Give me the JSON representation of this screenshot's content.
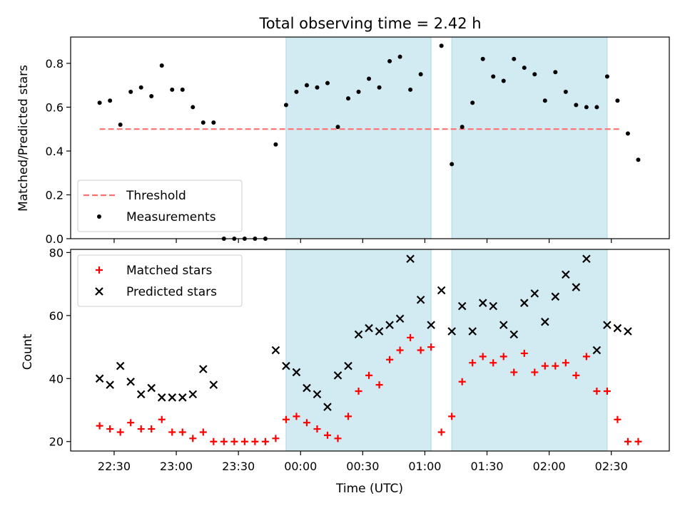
{
  "chart_data": {
    "title": "Total observing time = 2.42 h",
    "x_axis": {
      "label": "Time (UTC)",
      "range": [
        "22:09",
        "02:58"
      ],
      "ticks": [
        "22:30",
        "23:00",
        "23:30",
        "00:00",
        "00:30",
        "01:00",
        "01:30",
        "02:00",
        "02:30"
      ]
    },
    "shaded_intervals": {
      "color": "#add8e6",
      "intervals": [
        [
          "23:53",
          "01:03"
        ],
        [
          "01:13",
          "02:28"
        ]
      ]
    },
    "panels": [
      {
        "type": "scatter",
        "ylabel": "Matched/Predicted stars",
        "ylim": [
          0,
          0.92
        ],
        "yticks": [
          "0.0",
          "0.2",
          "0.4",
          "0.6",
          "0.8"
        ],
        "legend": {
          "placement": "lower-left"
        },
        "threshold": {
          "name": "Threshold",
          "value": 0.5,
          "x_range": [
            "22:23",
            "02:35"
          ],
          "color": "#ff7070"
        },
        "series": [
          {
            "name": "Measurements",
            "color": "#000000",
            "x": [
              "22:23",
              "22:28",
              "22:33",
              "22:38",
              "22:43",
              "22:48",
              "22:53",
              "22:58",
              "23:03",
              "23:08",
              "23:13",
              "23:18",
              "23:23",
              "23:28",
              "23:33",
              "23:38",
              "23:43",
              "23:48",
              "23:53",
              "23:58",
              "00:03",
              "00:08",
              "00:13",
              "00:18",
              "00:23",
              "00:28",
              "00:33",
              "00:38",
              "00:43",
              "00:48",
              "00:53",
              "00:58",
              "01:08",
              "01:13",
              "01:18",
              "01:23",
              "01:28",
              "01:33",
              "01:38",
              "01:43",
              "01:48",
              "01:53",
              "01:58",
              "02:03",
              "02:08",
              "02:13",
              "02:18",
              "02:23",
              "02:28",
              "02:33",
              "02:38",
              "02:43"
            ],
            "y": [
              0.62,
              0.63,
              0.52,
              0.67,
              0.69,
              0.65,
              0.79,
              0.68,
              0.68,
              0.6,
              0.53,
              0.53,
              0.0,
              0.0,
              0.0,
              0.0,
              0.0,
              0.43,
              0.61,
              0.67,
              0.7,
              0.69,
              0.71,
              0.51,
              0.64,
              0.67,
              0.73,
              0.69,
              0.81,
              0.83,
              0.68,
              0.75,
              0.88,
              0.34,
              0.51,
              0.62,
              0.82,
              0.74,
              0.72,
              0.82,
              0.78,
              0.75,
              0.63,
              0.76,
              0.67,
              0.61,
              0.6,
              0.6,
              0.74,
              0.63,
              0.48,
              0.36
            ]
          }
        ]
      },
      {
        "type": "scatter",
        "ylabel": "Count",
        "ylim": [
          17,
          81
        ],
        "yticks": [
          "20",
          "40",
          "60",
          "80"
        ],
        "legend": {
          "placement": "top-left"
        },
        "series": [
          {
            "name": "Matched stars",
            "marker": "plus",
            "color": "#ff0000",
            "x": [
              "22:23",
              "22:28",
              "22:33",
              "22:38",
              "22:43",
              "22:48",
              "22:53",
              "22:58",
              "23:03",
              "23:08",
              "23:13",
              "23:18",
              "23:23",
              "23:28",
              "23:33",
              "23:38",
              "23:43",
              "23:48",
              "23:53",
              "23:58",
              "00:03",
              "00:08",
              "00:13",
              "00:18",
              "00:23",
              "00:28",
              "00:33",
              "00:38",
              "00:43",
              "00:48",
              "00:53",
              "00:58",
              "01:03",
              "01:08",
              "01:13",
              "01:18",
              "01:23",
              "01:28",
              "01:33",
              "01:38",
              "01:43",
              "01:48",
              "01:53",
              "01:58",
              "02:03",
              "02:08",
              "02:13",
              "02:18",
              "02:23",
              "02:28",
              "02:33",
              "02:38",
              "02:43"
            ],
            "y": [
              25,
              24,
              23,
              26,
              24,
              24,
              27,
              23,
              23,
              21,
              23,
              20,
              20,
              20,
              20,
              20,
              20,
              21,
              27,
              28,
              26,
              24,
              22,
              21,
              28,
              36,
              41,
              38,
              46,
              49,
              53,
              49,
              50,
              23,
              28,
              39,
              45,
              47,
              45,
              47,
              42,
              48,
              42,
              44,
              44,
              45,
              41,
              47,
              36,
              36,
              27,
              20,
              20
            ]
          },
          {
            "name": "Predicted stars",
            "marker": "x",
            "color": "#000000",
            "x": [
              "22:23",
              "22:28",
              "22:33",
              "22:38",
              "22:43",
              "22:48",
              "22:53",
              "22:58",
              "23:03",
              "23:08",
              "23:13",
              "23:18",
              "23:48",
              "23:53",
              "23:58",
              "00:03",
              "00:08",
              "00:13",
              "00:18",
              "00:23",
              "00:28",
              "00:33",
              "00:38",
              "00:43",
              "00:48",
              "00:53",
              "00:58",
              "01:03",
              "01:08",
              "01:13",
              "01:18",
              "01:23",
              "01:28",
              "01:33",
              "01:38",
              "01:43",
              "01:48",
              "01:53",
              "01:58",
              "02:03",
              "02:08",
              "02:13",
              "02:18",
              "02:23",
              "02:28",
              "02:33",
              "02:38"
            ],
            "y": [
              40,
              38,
              44,
              39,
              35,
              37,
              34,
              34,
              34,
              35,
              43,
              38,
              49,
              44,
              42,
              37,
              35,
              31,
              41,
              44,
              54,
              56,
              55,
              57,
              59,
              78,
              65,
              57,
              68,
              55,
              63,
              55,
              64,
              63,
              57,
              54,
              64,
              67,
              58,
              66,
              73,
              69,
              78,
              49,
              57,
              56,
              55
            ]
          }
        ]
      }
    ]
  }
}
